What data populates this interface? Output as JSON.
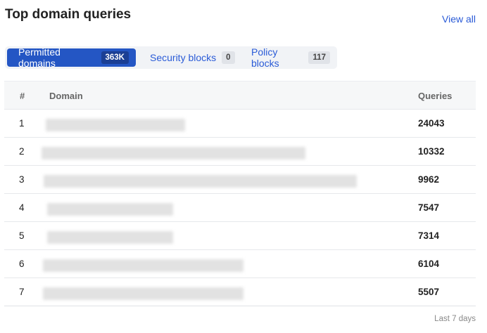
{
  "title": "Top domain queries",
  "view_all": "View all",
  "tabs": [
    {
      "label": "Permitted domains",
      "count": "363K",
      "active": true
    },
    {
      "label": "Security blocks",
      "count": "0",
      "active": false
    },
    {
      "label": "Policy blocks",
      "count": "117",
      "active": false
    }
  ],
  "table": {
    "headers": {
      "rank": "#",
      "domain": "Domain",
      "queries": "Queries"
    },
    "rows": [
      {
        "rank": "1",
        "queries": "24043"
      },
      {
        "rank": "2",
        "queries": "10332"
      },
      {
        "rank": "3",
        "queries": "9962"
      },
      {
        "rank": "4",
        "queries": "7547"
      },
      {
        "rank": "5",
        "queries": "7314"
      },
      {
        "rank": "6",
        "queries": "6104"
      },
      {
        "rank": "7",
        "queries": "5507"
      }
    ]
  },
  "footer": "Last 7 days"
}
